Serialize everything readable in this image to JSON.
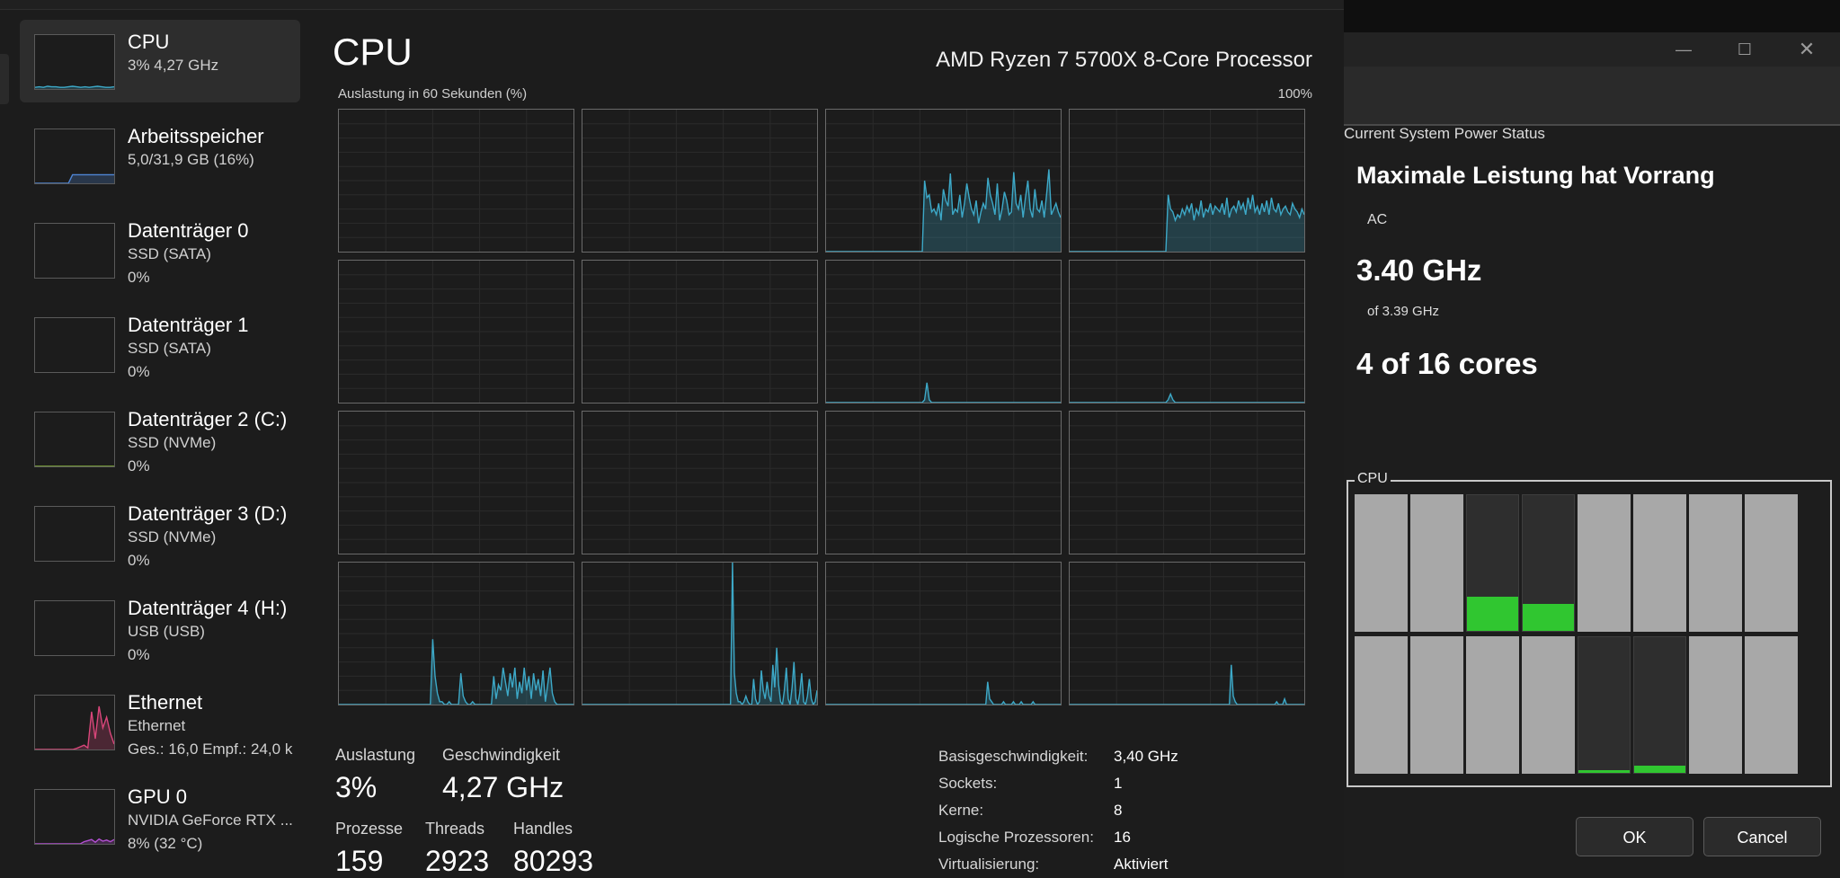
{
  "task_manager": {
    "sidebar": [
      {
        "name": "CPU",
        "sub1": "3%  4,27 GHz",
        "sub2": "",
        "active": true,
        "graph_color": "#3da9c8",
        "graph": [
          3,
          4,
          3,
          5,
          4,
          4,
          3,
          3,
          4,
          5,
          4,
          3,
          4,
          3,
          4,
          5,
          4,
          3,
          3,
          4
        ]
      },
      {
        "name": "Arbeitsspeicher",
        "sub1": "5,0/31,9 GB (16%)",
        "sub2": "",
        "active": false,
        "graph_color": "#4f86d6",
        "graph": [
          0,
          0,
          0,
          0,
          0,
          0,
          0,
          0,
          0,
          16,
          16,
          16,
          16,
          16,
          16,
          16,
          16,
          16,
          16,
          16
        ]
      },
      {
        "name": "Datenträger 0",
        "sub1": "SSD (SATA)",
        "sub2": "0%",
        "active": false,
        "graph_color": "#6fbf3f",
        "graph": []
      },
      {
        "name": "Datenträger 1",
        "sub1": "SSD (SATA)",
        "sub2": "0%",
        "active": false,
        "graph_color": "#6fbf3f",
        "graph": []
      },
      {
        "name": "Datenträger 2 (C:)",
        "sub1": "SSD (NVMe)",
        "sub2": "0%",
        "active": false,
        "graph_color": "#8fbf3f",
        "graph": [
          0,
          0,
          0,
          0,
          0,
          0,
          0,
          0,
          0,
          0,
          0,
          0,
          0,
          0,
          0,
          0,
          0,
          0,
          0,
          0
        ]
      },
      {
        "name": "Datenträger 3 (D:)",
        "sub1": "SSD (NVMe)",
        "sub2": "0%",
        "active": false,
        "graph_color": "#6fbf3f",
        "graph": []
      },
      {
        "name": "Datenträger 4 (H:)",
        "sub1": "USB (USB)",
        "sub2": "0%",
        "active": false,
        "graph_color": "#6fbf3f",
        "graph": []
      },
      {
        "name": "Ethernet",
        "sub1": "Ethernet",
        "sub2": "Ges.: 16,0  Empf.: 24,0 k",
        "active": false,
        "graph_color": "#d9467a",
        "graph": [
          0,
          0,
          0,
          0,
          0,
          0,
          0,
          0,
          0,
          0,
          0,
          2,
          5,
          8,
          3,
          70,
          20,
          80,
          40,
          60,
          30,
          10
        ]
      },
      {
        "name": "GPU 0",
        "sub1": "NVIDIA GeForce RTX ...",
        "sub2": "8%  (32 °C)",
        "active": false,
        "graph_color": "#b24fd1",
        "graph": [
          0,
          0,
          0,
          0,
          0,
          0,
          0,
          0,
          0,
          0,
          0,
          0,
          0,
          4,
          6,
          8,
          3,
          9,
          5,
          7,
          4,
          8
        ]
      }
    ],
    "title": "CPU",
    "cpu_model": "AMD Ryzen 7 5700X 8-Core Processor",
    "graph_label": "Auslastung in 60 Sekunden (%)",
    "graph_max": "100%",
    "core_graph_color": "#3da9c8",
    "cores": [
      [],
      [],
      [
        0,
        0,
        0,
        0,
        0,
        0,
        0,
        0,
        0,
        0,
        0,
        0,
        0,
        0,
        0,
        0,
        0,
        0,
        0,
        0,
        0,
        0,
        0,
        0,
        0,
        0,
        0,
        0,
        0,
        0,
        0,
        0,
        0,
        0,
        0,
        0,
        0,
        0,
        0,
        0,
        0,
        0,
        50,
        38,
        40,
        28,
        30,
        26,
        34,
        22,
        44,
        36,
        32,
        55,
        26,
        30,
        28,
        40,
        24,
        34,
        48,
        38,
        30,
        26,
        36,
        20,
        28,
        34,
        30,
        52,
        40,
        34,
        26,
        48,
        22,
        30,
        42,
        36,
        26,
        28,
        56,
        34,
        30,
        40,
        24,
        38,
        50,
        30,
        24,
        44,
        30,
        28,
        36,
        24,
        40,
        58,
        26,
        30,
        34,
        28,
        24
      ],
      [
        0,
        0,
        0,
        0,
        0,
        0,
        0,
        0,
        0,
        0,
        0,
        0,
        0,
        0,
        0,
        0,
        0,
        0,
        0,
        0,
        0,
        0,
        0,
        0,
        0,
        0,
        0,
        0,
        0,
        0,
        0,
        0,
        0,
        0,
        0,
        0,
        0,
        0,
        0,
        0,
        0,
        0,
        40,
        30,
        28,
        22,
        26,
        24,
        30,
        26,
        32,
        28,
        34,
        22,
        30,
        26,
        36,
        24,
        30,
        28,
        34,
        26,
        32,
        30,
        28,
        34,
        26,
        38,
        24,
        30,
        32,
        28,
        36,
        30,
        34,
        26,
        38,
        30,
        40,
        28,
        32,
        26,
        34,
        28,
        36,
        26,
        38,
        30,
        28,
        34,
        26,
        30,
        32,
        28,
        26,
        34,
        30,
        28,
        24,
        30,
        26
      ],
      [],
      [],
      [
        0,
        0,
        0,
        0,
        0,
        0,
        0,
        0,
        0,
        0,
        0,
        0,
        0,
        0,
        0,
        0,
        0,
        0,
        0,
        0,
        0,
        0,
        0,
        0,
        0,
        0,
        0,
        0,
        0,
        0,
        0,
        0,
        0,
        0,
        0,
        0,
        0,
        0,
        0,
        0,
        0,
        0,
        2,
        14,
        2,
        0,
        0,
        0,
        0,
        0,
        0,
        0,
        0,
        0,
        0,
        0,
        0,
        0,
        0,
        0,
        0,
        0,
        0,
        0,
        0,
        0,
        0,
        0,
        0,
        0,
        0,
        0,
        0,
        0,
        0,
        0,
        0,
        0,
        0,
        0,
        0,
        0,
        0,
        0,
        0,
        0,
        0,
        0,
        0,
        0,
        0,
        0,
        0,
        0,
        0,
        0,
        0,
        0,
        0,
        0,
        0
      ],
      [
        0,
        0,
        0,
        0,
        0,
        0,
        0,
        0,
        0,
        0,
        0,
        0,
        0,
        0,
        0,
        0,
        0,
        0,
        0,
        0,
        0,
        0,
        0,
        0,
        0,
        0,
        0,
        0,
        0,
        0,
        0,
        0,
        0,
        0,
        0,
        0,
        0,
        0,
        0,
        0,
        0,
        0,
        2,
        6,
        2,
        0,
        0,
        0,
        0,
        0,
        0,
        0,
        0,
        0,
        0,
        0,
        0,
        0,
        0,
        0,
        0,
        0,
        0,
        0,
        0,
        0,
        0,
        0,
        0,
        0,
        0,
        0,
        0,
        0,
        0,
        0,
        0,
        0,
        0,
        0,
        0,
        0,
        0,
        0,
        0,
        0,
        0,
        0,
        0,
        0,
        0,
        0,
        0,
        0,
        0,
        0,
        0,
        0,
        0,
        0,
        0
      ],
      [],
      [],
      [],
      [],
      [
        0,
        0,
        0,
        0,
        0,
        0,
        0,
        0,
        0,
        0,
        0,
        0,
        0,
        0,
        0,
        0,
        0,
        0,
        0,
        0,
        0,
        0,
        0,
        0,
        0,
        0,
        0,
        0,
        0,
        0,
        0,
        0,
        0,
        0,
        0,
        0,
        0,
        0,
        0,
        0,
        46,
        20,
        8,
        2,
        2,
        0,
        0,
        2,
        0,
        0,
        0,
        0,
        22,
        6,
        2,
        0,
        0,
        2,
        0,
        0,
        0,
        0,
        0,
        0,
        0,
        0,
        20,
        4,
        14,
        10,
        26,
        16,
        6,
        22,
        12,
        26,
        4,
        16,
        8,
        26,
        10,
        20,
        4,
        22,
        10,
        18,
        6,
        24,
        2,
        14,
        26,
        8,
        2,
        0,
        0,
        0,
        0,
        0,
        0,
        0,
        0
      ],
      [
        0,
        0,
        0,
        0,
        0,
        0,
        0,
        0,
        0,
        0,
        0,
        0,
        0,
        0,
        0,
        0,
        0,
        0,
        0,
        0,
        0,
        0,
        0,
        0,
        0,
        0,
        0,
        0,
        0,
        0,
        0,
        0,
        0,
        0,
        0,
        0,
        0,
        0,
        0,
        0,
        0,
        0,
        0,
        0,
        0,
        0,
        0,
        0,
        0,
        0,
        0,
        0,
        0,
        0,
        0,
        0,
        0,
        0,
        0,
        0,
        0,
        0,
        0,
        0,
        0,
        0,
        0,
        0,
        0,
        0,
        0,
        0,
        0,
        0,
        0,
        0,
        0,
        0,
        100,
        22,
        8,
        2,
        2,
        0,
        2,
        6,
        2,
        0,
        0,
        18,
        4,
        0,
        2,
        24,
        10,
        4,
        16,
        6,
        2,
        28,
        12,
        40,
        14,
        2,
        0,
        10,
        26,
        4,
        0,
        12,
        30,
        4,
        0,
        8,
        22,
        2,
        0,
        6,
        18,
        4,
        0,
        2,
        10
      ],
      [
        0,
        0,
        0,
        0,
        0,
        0,
        0,
        0,
        0,
        0,
        0,
        0,
        0,
        0,
        0,
        0,
        0,
        0,
        0,
        0,
        0,
        0,
        0,
        0,
        0,
        0,
        0,
        0,
        0,
        0,
        0,
        0,
        0,
        0,
        0,
        0,
        0,
        0,
        0,
        0,
        0,
        0,
        0,
        0,
        0,
        0,
        0,
        0,
        0,
        0,
        0,
        0,
        0,
        0,
        0,
        0,
        0,
        0,
        0,
        0,
        0,
        0,
        0,
        0,
        0,
        0,
        0,
        0,
        0,
        0,
        0,
        0,
        0,
        0,
        0,
        0,
        0,
        0,
        0,
        0,
        0,
        0,
        16,
        4,
        2,
        0,
        0,
        0,
        0,
        0,
        2,
        0,
        0,
        0,
        0,
        2,
        0,
        0,
        0,
        2,
        0,
        0,
        0,
        0,
        0,
        2,
        0,
        0,
        0,
        0,
        0,
        0,
        0,
        0,
        0,
        0,
        0,
        0,
        0,
        0
      ],
      [
        0,
        0,
        0,
        0,
        0,
        0,
        0,
        0,
        0,
        0,
        0,
        0,
        0,
        0,
        0,
        0,
        0,
        0,
        0,
        0,
        0,
        0,
        0,
        0,
        0,
        0,
        0,
        0,
        0,
        0,
        0,
        0,
        0,
        0,
        0,
        0,
        0,
        0,
        0,
        0,
        0,
        0,
        0,
        0,
        0,
        0,
        0,
        0,
        0,
        0,
        0,
        0,
        0,
        0,
        0,
        0,
        0,
        0,
        0,
        0,
        0,
        0,
        0,
        0,
        0,
        0,
        0,
        0,
        0,
        0,
        0,
        0,
        0,
        0,
        0,
        0,
        0,
        0,
        0,
        0,
        0,
        0,
        28,
        6,
        2,
        0,
        0,
        0,
        0,
        0,
        0,
        0,
        0,
        0,
        0,
        0,
        0,
        0,
        0,
        0,
        0,
        0,
        0,
        0,
        0,
        2,
        0,
        0,
        0,
        4,
        0,
        0,
        0,
        0,
        0,
        0,
        0,
        0,
        0,
        0
      ]
    ],
    "stats": {
      "util_label": "Auslastung",
      "util_value": "3%",
      "speed_label": "Geschwindigkeit",
      "speed_value": "4,27 GHz",
      "proc_label": "Prozesse",
      "proc_value": "159",
      "threads_label": "Threads",
      "threads_value": "2923",
      "handles_label": "Handles",
      "handles_value": "80293"
    },
    "specs": [
      {
        "key": "Basisgeschwindigkeit:",
        "value": "3,40 GHz"
      },
      {
        "key": "Sockets:",
        "value": "1"
      },
      {
        "key": "Kerne:",
        "value": "8"
      },
      {
        "key": "Logische Prozessoren:",
        "value": "16"
      },
      {
        "key": "Virtualisierung:",
        "value": "Aktiviert"
      }
    ]
  },
  "power_dialog": {
    "caption_minimize": "—",
    "caption_maximize": "☐",
    "caption_close": "✕",
    "heading": "Current System Power Status",
    "mode": "Maximale Leistung hat Vorrang",
    "source": "AC",
    "frequency": "3.40 GHz",
    "frequency_of": "of 3.39 GHz",
    "cores_active": "4 of 16 cores",
    "cpu_label": "CPU",
    "fill_color": "#30c630",
    "core_bars": [
      {
        "parked": false,
        "load": 0
      },
      {
        "parked": false,
        "load": 0
      },
      {
        "parked": true,
        "load": 0.25
      },
      {
        "parked": true,
        "load": 0.2
      },
      {
        "parked": false,
        "load": 0
      },
      {
        "parked": false,
        "load": 0
      },
      {
        "parked": false,
        "load": 0
      },
      {
        "parked": false,
        "load": 0
      },
      {
        "parked": false,
        "load": 0
      },
      {
        "parked": false,
        "load": 0
      },
      {
        "parked": false,
        "load": 0
      },
      {
        "parked": false,
        "load": 0
      },
      {
        "parked": true,
        "load": 0.02
      },
      {
        "parked": true,
        "load": 0.05
      },
      {
        "parked": false,
        "load": 0
      },
      {
        "parked": false,
        "load": 0
      }
    ],
    "ok_label": "OK",
    "cancel_label": "Cancel"
  }
}
